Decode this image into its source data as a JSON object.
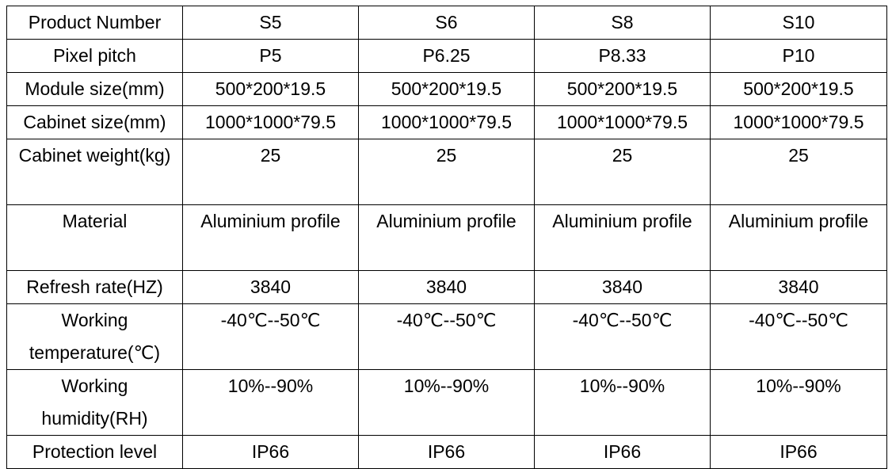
{
  "table": {
    "rows": [
      {
        "label": "Product Number",
        "values": [
          "S5",
          "S6",
          "S8",
          "S10"
        ],
        "tall": false
      },
      {
        "label": "Pixel pitch",
        "values": [
          "P5",
          "P6.25",
          "P8.33",
          "P10"
        ],
        "tall": false
      },
      {
        "label": "Module size(mm)",
        "values": [
          "500*200*19.5",
          "500*200*19.5",
          "500*200*19.5",
          "500*200*19.5"
        ],
        "tall": false
      },
      {
        "label": "Cabinet size(mm)",
        "values": [
          "1000*1000*79.5",
          "1000*1000*79.5",
          "1000*1000*79.5",
          "1000*1000*79.5"
        ],
        "tall": false
      },
      {
        "label": "Cabinet weight(kg)",
        "values": [
          "25",
          "25",
          "25",
          "25"
        ],
        "tall": true
      },
      {
        "label": "Material",
        "values": [
          "Aluminium profile",
          "Aluminium profile",
          "Aluminium profile",
          "Aluminium profile"
        ],
        "tall": true
      },
      {
        "label": "Refresh rate(HZ)",
        "values": [
          "3840",
          "3840",
          "3840",
          "3840"
        ],
        "tall": false
      },
      {
        "label": "Working temperature(℃)",
        "values": [
          "-40℃--50℃",
          "-40℃--50℃",
          "-40℃--50℃",
          "-40℃--50℃"
        ],
        "tall": true
      },
      {
        "label": "Working humidity(RH)",
        "values": [
          "10%--90%",
          "10%--90%",
          "10%--90%",
          "10%--90%"
        ],
        "tall": true
      },
      {
        "label": "Protection level",
        "values": [
          "IP66",
          "IP66",
          "IP66",
          "IP66"
        ],
        "tall": false
      }
    ]
  }
}
